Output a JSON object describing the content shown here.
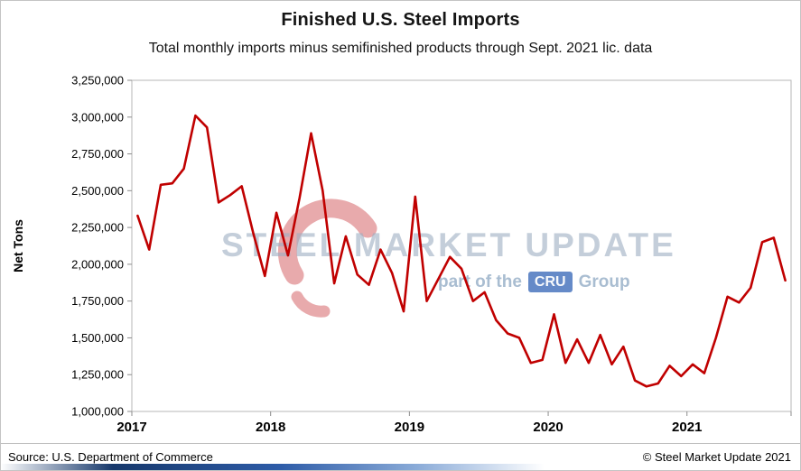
{
  "header": {
    "title": "Finished U.S. Steel Imports",
    "subtitle": "Total monthly imports minus semifinished products through Sept. 2021 lic. data"
  },
  "footer": {
    "source": "Source: U.S. Department of Commerce",
    "copyright": "© Steel Market Update 2021"
  },
  "watermark": {
    "line1": "STEEL MARKET UPDATE",
    "line2_prefix": "part of the",
    "line2_cru": "CRU",
    "line2_suffix": "Group",
    "cru_badge_color": "#4a76be",
    "text_color": "#9cb0c4"
  },
  "colors": {
    "line": "#C00000",
    "axis": "#8c8c8c",
    "plot_border": "#b7b7b7",
    "text": "#000000"
  },
  "chart_data": {
    "type": "line",
    "title": "Finished U.S. Steel Imports",
    "subtitle": "Total monthly imports minus semifinished products through Sept. 2021 lic. data",
    "ylabel": "Net Tons",
    "xlabel": "",
    "ylim": [
      1000000,
      3250000
    ],
    "ytick_step": 250000,
    "grid": false,
    "legend": "none",
    "x_frequency": "monthly",
    "x_start": "2017-01",
    "x_end": "2021-09",
    "x_year_ticks": [
      "2017",
      "2018",
      "2019",
      "2020",
      "2021"
    ],
    "series": [
      {
        "name": "Finished U.S. steel imports (net tons)",
        "color": "#C00000",
        "values": [
          2330000,
          2100000,
          2540000,
          2550000,
          2650000,
          3010000,
          2930000,
          2420000,
          2470000,
          2530000,
          2210000,
          1920000,
          2350000,
          2060000,
          2450000,
          2890000,
          2500000,
          1870000,
          2190000,
          1930000,
          1860000,
          2100000,
          1940000,
          1680000,
          2460000,
          1750000,
          1900000,
          2050000,
          1970000,
          1750000,
          1810000,
          1620000,
          1530000,
          1500000,
          1330000,
          1350000,
          1660000,
          1330000,
          1490000,
          1330000,
          1520000,
          1320000,
          1440000,
          1210000,
          1170000,
          1190000,
          1310000,
          1240000,
          1320000,
          1260000,
          1500000,
          1780000,
          1740000,
          1840000,
          2150000,
          2180000,
          1890000
        ]
      }
    ]
  }
}
